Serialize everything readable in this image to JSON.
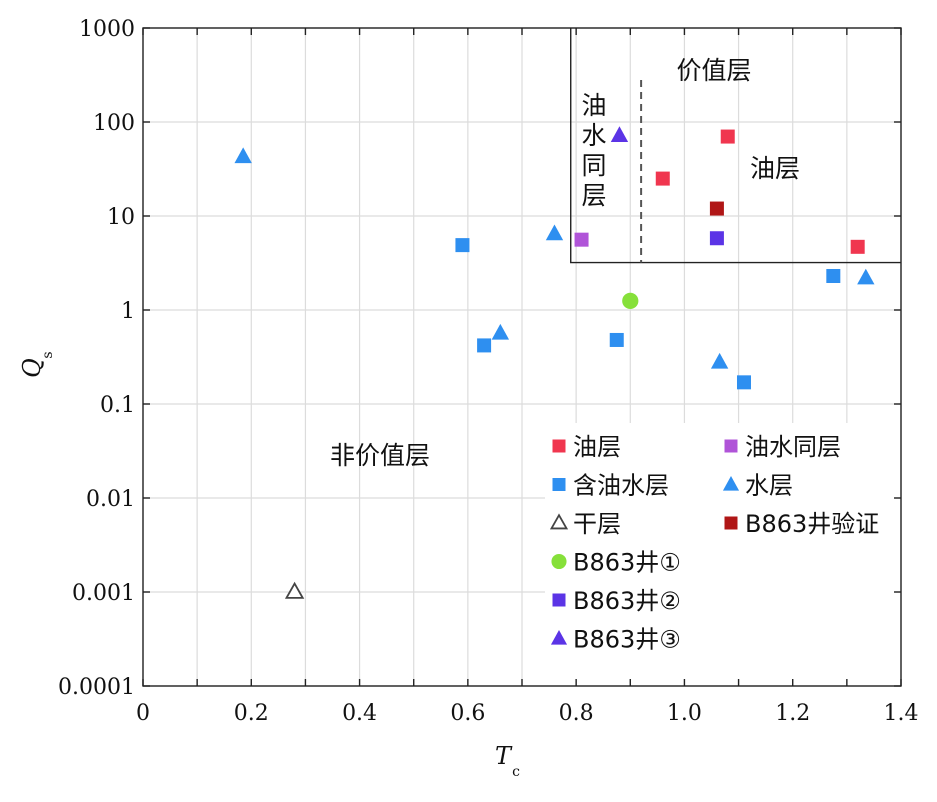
{
  "chart_data": {
    "type": "scatter",
    "title": "",
    "xlabel": "T",
    "xlabel_sub": "c",
    "ylabel": "Q",
    "ylabel_sub": "s",
    "xlim": [
      0,
      1.4
    ],
    "ylim": [
      0.0001,
      1000
    ],
    "yscale": "log",
    "grid": true,
    "x_ticks": [
      "0",
      "0.2",
      "0.4",
      "0.6",
      "0.8",
      "1.0",
      "1.2",
      "1.4"
    ],
    "x_tick_values": [
      0,
      0.2,
      0.4,
      0.6,
      0.8,
      1.0,
      1.2,
      1.4
    ],
    "y_ticks": [
      "0.0001",
      "0.001",
      "0.01",
      "0.1",
      "1",
      "10",
      "100",
      "1000"
    ],
    "y_tick_values": [
      0.0001,
      0.001,
      0.01,
      0.1,
      1,
      10,
      100,
      1000
    ],
    "series": [
      {
        "name": "油层",
        "marker": "square",
        "color": "#f0364f",
        "points": [
          [
            0.96,
            25
          ],
          [
            1.08,
            70
          ],
          [
            1.32,
            4.7
          ]
        ]
      },
      {
        "name": "油水同层",
        "marker": "square",
        "color": "#b054d8",
        "points": [
          [
            0.81,
            5.6
          ]
        ]
      },
      {
        "name": "含油水层",
        "marker": "square",
        "color": "#2e8ff0",
        "points": [
          [
            0.59,
            4.9
          ],
          [
            0.63,
            0.42
          ],
          [
            0.875,
            0.48
          ],
          [
            1.11,
            0.17
          ],
          [
            1.275,
            2.3
          ]
        ]
      },
      {
        "name": "水层",
        "marker": "triangle",
        "color": "#2e8ff0",
        "points": [
          [
            0.185,
            43
          ],
          [
            0.66,
            0.57
          ],
          [
            0.76,
            6.5
          ],
          [
            1.065,
            0.28
          ],
          [
            1.335,
            2.2
          ]
        ]
      },
      {
        "name": "干层",
        "marker": "triangle-open",
        "color": "#444444",
        "points": [
          [
            0.28,
            0.001
          ]
        ]
      },
      {
        "name": "B863井验证",
        "marker": "square",
        "color": "#b01616",
        "points": [
          [
            1.06,
            12
          ]
        ]
      },
      {
        "name": "B863井①",
        "marker": "circle",
        "color": "#86e03a",
        "points": [
          [
            0.9,
            1.25
          ]
        ]
      },
      {
        "name": "B863井②",
        "marker": "square",
        "color": "#5b34e6",
        "points": [
          [
            1.06,
            5.8
          ]
        ]
      },
      {
        "name": "B863井③",
        "marker": "triangle",
        "color": "#5b34e6",
        "points": [
          [
            0.88,
            72
          ]
        ]
      }
    ],
    "legend": {
      "placement": "lower-right",
      "columns": [
        [
          "油层",
          "含油水层",
          "干层",
          "B863井①",
          "B863井②",
          "B863井③"
        ],
        [
          "油水同层",
          "水层",
          "B863井验证"
        ]
      ]
    },
    "regions": {
      "box_x_min": 0.79,
      "box_y_min": 3.2,
      "divider_x": 0.92
    },
    "annotations": {
      "pay_zone": "价值层",
      "oil_water": [
        "油",
        "水",
        "同",
        "层"
      ],
      "oil_layer": "油层",
      "non_pay": "非价值层"
    }
  }
}
